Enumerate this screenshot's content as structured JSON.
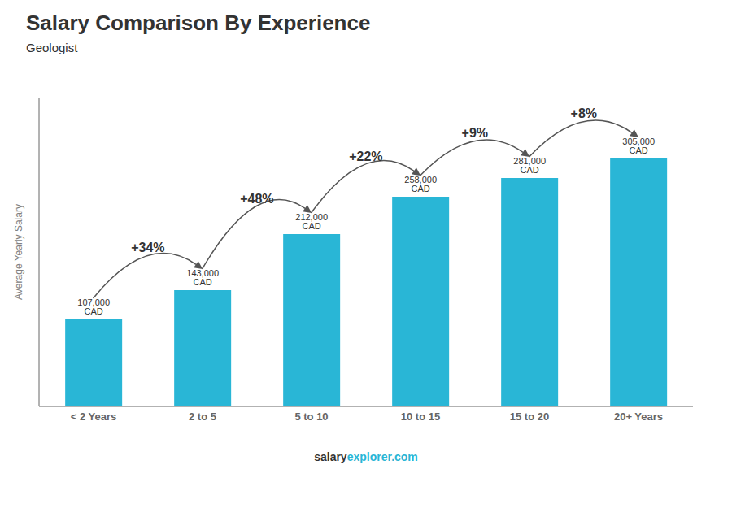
{
  "chart_data": {
    "type": "bar",
    "title": "Salary Comparison By Experience",
    "subtitle": "Geologist",
    "ylabel": "Average Yearly Salary",
    "categories": [
      "< 2 Years",
      "2 to 5",
      "5 to 10",
      "10 to 15",
      "15 to 20",
      "20+ Years"
    ],
    "values": [
      107000,
      143000,
      212000,
      258000,
      281000,
      305000
    ],
    "value_labels": [
      "107,000 CAD",
      "143,000 CAD",
      "212,000 CAD",
      "258,000 CAD",
      "281,000 CAD",
      "305,000 CAD"
    ],
    "data_labels": true,
    "color": "#29b6d6",
    "ylim": [
      0,
      380000
    ],
    "tick_labels": "x",
    "grid": false,
    "annotations": [
      "+34%",
      "+48%",
      "+22%",
      "+9%",
      "+8%"
    ],
    "footer": [
      "salary",
      "explorer.com"
    ]
  }
}
